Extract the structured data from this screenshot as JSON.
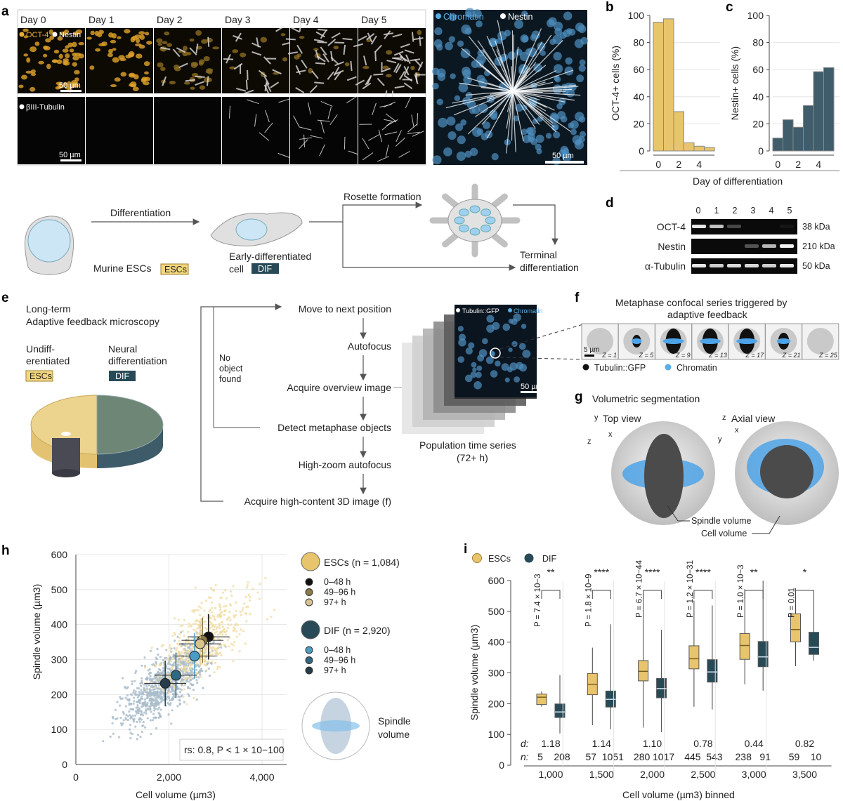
{
  "panels": {
    "a": "a",
    "b": "b",
    "c": "c",
    "d": "d",
    "e": "e",
    "f": "f",
    "g": "g",
    "h": "h",
    "i": "i"
  },
  "colors": {
    "esc": "#e8c46c",
    "dif": "#284a57",
    "chromatin": "#5aaee6",
    "scatter_esc": "#f1dca3",
    "scatter_dif": "#a9bccb"
  },
  "panel_a": {
    "days": [
      "Day 0",
      "Day 1",
      "Day 2",
      "Day 3",
      "Day 4",
      "Day 5"
    ],
    "legend_oct4": "OCT-4",
    "legend_nestin": "Nestin",
    "legend_tubulin": "βIII-Tubulin",
    "scale_bar": "50 µm",
    "big_legend_chromatin": "Chromatin",
    "big_legend_nestin": "Nestin",
    "big_scale_bar": "50 µm"
  },
  "diagram": {
    "differentiation": "Differentiation",
    "murine_escs": "Murine ESCs",
    "escs_badge": "ESCs",
    "early_diff_1": "Early-differentiated",
    "early_diff_2": "cell",
    "dif_badge": "DIF",
    "rosette": "Rosette formation",
    "terminal_1": "Terminal",
    "terminal_2": "differentiation"
  },
  "chart_data": [
    {
      "id": "b",
      "type": "bar",
      "ylabel": "OCT-4+ cells (%)",
      "xlabel": "Day of differentiation",
      "categories": [
        0,
        1,
        2,
        3,
        4,
        5
      ],
      "values": [
        95,
        97.5,
        29,
        6,
        3.5,
        2.5
      ],
      "ylim": [
        0,
        100
      ],
      "yticks": [
        0,
        20,
        40,
        60,
        80,
        100
      ],
      "xticks": [
        0,
        2,
        4
      ]
    },
    {
      "id": "c",
      "type": "bar",
      "ylabel": "Nestin+ cells (%)",
      "xlabel": "Day of differentiation",
      "categories": [
        0,
        1,
        2,
        3,
        4,
        5
      ],
      "values": [
        9.5,
        23,
        17.5,
        33.5,
        58.5,
        61.5
      ],
      "ylim": [
        0,
        100
      ],
      "yticks": [
        0,
        20,
        40,
        60,
        80,
        100
      ],
      "xticks": [
        0,
        2,
        4
      ]
    },
    {
      "id": "h",
      "type": "scatter",
      "xlabel": "Cell volume (µm3)",
      "ylabel": "Spindle volume (µm3)",
      "xlim": [
        0,
        4500
      ],
      "ylim": [
        0,
        600
      ],
      "xticks": [
        0,
        2000,
        4000
      ],
      "xtick_labels": [
        "0",
        "2,000",
        "4,000"
      ],
      "yticks": [
        0,
        100,
        200,
        300,
        400,
        500,
        600
      ],
      "annotation": "rs: 0.8, P < 1 × 10−100",
      "series": [
        {
          "name": "ESCs (n = 1,084)",
          "groups": [
            {
              "label": "0–48 h",
              "x": 2850,
              "y": 365,
              "color": "#111111"
            },
            {
              "label": "49–96 h",
              "x": 2720,
              "y": 355,
              "color": "#8a7a45"
            },
            {
              "label": "97+ h",
              "x": 2670,
              "y": 345,
              "color": "#d8c28e"
            }
          ]
        },
        {
          "name": "DIF (n = 2,920)",
          "groups": [
            {
              "label": "0–48 h",
              "x": 2550,
              "y": 310,
              "color": "#4a9cc4"
            },
            {
              "label": "49–96 h",
              "x": 2150,
              "y": 255,
              "color": "#2f6883"
            },
            {
              "label": "97+ h",
              "x": 1920,
              "y": 232,
              "color": "#263e4b"
            }
          ]
        }
      ]
    },
    {
      "id": "i",
      "type": "box",
      "xlabel": "Cell volume (µm3) binned",
      "ylabel": "Spindle volume (µm3)",
      "ylim": [
        0,
        600
      ],
      "yticks": [
        0,
        100,
        200,
        300,
        400,
        500,
        600
      ],
      "legend": [
        "ESCs",
        "DIF"
      ],
      "bins": [
        {
          "label": "1,000",
          "esc": [
            190,
            197,
            221,
            231,
            240
          ],
          "dif": [
            103,
            155,
            173,
            199,
            293
          ],
          "p": "P = 7.4 × 10−3",
          "sig": "**",
          "d": "1.18",
          "n": [
            "5",
            "208"
          ]
        },
        {
          "label": "1,500",
          "esc": [
            130,
            229,
            263,
            298,
            382
          ],
          "dif": [
            117,
            189,
            214,
            241,
            458
          ],
          "p": "P = 1.8 × 10−9",
          "sig": "****",
          "d": "1.14",
          "n": [
            "57",
            "1051"
          ]
        },
        {
          "label": "2,000",
          "esc": [
            122,
            274,
            305,
            340,
            560
          ],
          "dif": [
            108,
            219,
            249,
            282,
            440
          ],
          "p": "P = 6.7 × 10−44",
          "sig": "****",
          "d": "1.10",
          "n": [
            "280",
            "1017"
          ]
        },
        {
          "label": "2,500",
          "esc": [
            190,
            313,
            346,
            388,
            535
          ],
          "dif": [
            181,
            270,
            303,
            343,
            519
          ],
          "p": "P = 1.2 × 10−31",
          "sig": "****",
          "d": "0.78",
          "n": [
            "445",
            "543"
          ]
        },
        {
          "label": "3,000",
          "esc": [
            263,
            344,
            389,
            428,
            572
          ],
          "dif": [
            242,
            320,
            352,
            402,
            600
          ],
          "p": "P = 1.0 × 10−3",
          "sig": "**",
          "d": "0.44",
          "n": [
            "238",
            "91"
          ]
        },
        {
          "label": "3,500",
          "esc": [
            322,
            401,
            441,
            492,
            575
          ],
          "dif": [
            340,
            360,
            383,
            432,
            542
          ],
          "p": "P = 0.01",
          "sig": "*",
          "d": "0.82",
          "n": [
            "59",
            "10"
          ]
        }
      ]
    }
  ],
  "panel_d": {
    "lanes": [
      "0",
      "1",
      "2",
      "3",
      "4",
      "5"
    ],
    "rows": [
      {
        "label": "OCT-4",
        "kda": "38 kDa",
        "bands": [
          0.9,
          0.75,
          0.25,
          0,
          0,
          0.05
        ]
      },
      {
        "label": "Nestin",
        "kda": "210 kDa",
        "bands": [
          0,
          0,
          0,
          0.3,
          0.7,
          0.95
        ]
      },
      {
        "label": "α-Tubulin",
        "kda": "50 kDa",
        "bands": [
          0.9,
          0.8,
          0.85,
          0.85,
          0.8,
          0.9
        ]
      }
    ]
  },
  "panel_e": {
    "title_1": "Long-term",
    "title_2": "Adaptive feedback microscopy",
    "undiff_1": "Undiff-",
    "undiff_2": "erentiated",
    "neural_1": "Neural",
    "neural_2": "differentiation",
    "escs_badge": "ESCs",
    "dif_badge": "DIF",
    "steps": [
      "Move to next position",
      "Autofocus",
      "Acquire overview image",
      "Detect metaphase objects",
      "High-zoom autofocus",
      "Acquire high-content 3D image (f)"
    ],
    "no_object": [
      "No",
      "object",
      "found"
    ],
    "stack_legend_tubulin": "Tubulin::GFP",
    "stack_legend_chromatin": "Chromatin",
    "stack_scale": "50 µm",
    "series_1": "Population time series",
    "series_2": "(72+ h)"
  },
  "panel_f": {
    "title_1": "Metaphase confocal series triggered by",
    "title_2": "adaptive feedback",
    "z": [
      "Z = 1",
      "Z = 5",
      "Z = 9",
      "Z = 13",
      "Z = 17",
      "Z = 21",
      "Z = 25"
    ],
    "scale": "5 µm",
    "legend_tubulin": "Tubulin::GFP",
    "legend_chromatin": "Chromatin"
  },
  "panel_g": {
    "title": "Volumetric segmentation",
    "top_view": "Top view",
    "axial_view": "Axial view",
    "axis_y": "y",
    "axis_x": "x",
    "axis_z": "z",
    "spindle_volume": "Spindle volume",
    "cell_volume": "Cell volume"
  },
  "panel_h_extra": {
    "esc_legend": "ESCs (n = 1,084)",
    "dif_legend": "DIF (n = 2,920)",
    "spindle_1": "Spindle",
    "spindle_2": "volume"
  },
  "panel_i_extra": {
    "d_label": "d:",
    "n_label": "n:"
  }
}
